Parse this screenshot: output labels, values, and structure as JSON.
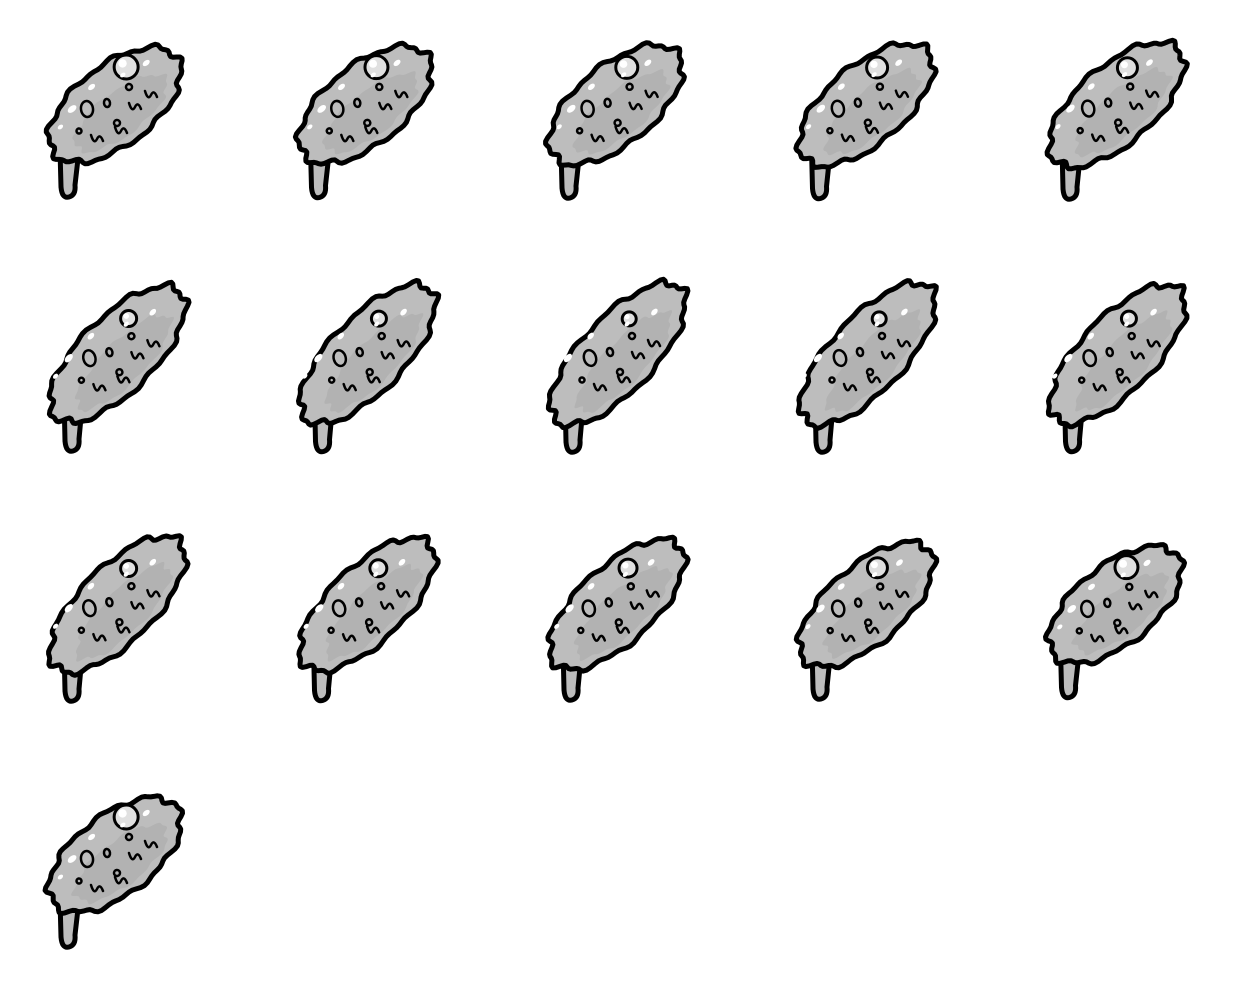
{
  "sprite_sheet": {
    "columns": 5,
    "rows": 4,
    "frame_count": 16,
    "colors": {
      "background": "#ffffff",
      "body_fill": "#bdbdbd",
      "shadow_fill": "#9e9e9e",
      "highlight": "#ffffff",
      "outline": "#000000"
    },
    "frames": [
      {
        "index": 0,
        "icon": "slime-blob-icon",
        "stretch": 0.0
      },
      {
        "index": 1,
        "icon": "slime-blob-icon",
        "stretch": 0.05
      },
      {
        "index": 2,
        "icon": "slime-blob-icon",
        "stretch": 0.1
      },
      {
        "index": 3,
        "icon": "slime-blob-icon",
        "stretch": 0.15
      },
      {
        "index": 4,
        "icon": "slime-blob-icon",
        "stretch": 0.2
      },
      {
        "index": 5,
        "icon": "slime-blob-icon",
        "stretch": 0.4
      },
      {
        "index": 6,
        "icon": "slime-blob-icon",
        "stretch": 0.45
      },
      {
        "index": 7,
        "icon": "slime-blob-icon",
        "stretch": 0.5
      },
      {
        "index": 8,
        "icon": "slime-blob-icon",
        "stretch": 0.5
      },
      {
        "index": 9,
        "icon": "slime-blob-icon",
        "stretch": 0.45
      },
      {
        "index": 10,
        "icon": "slime-blob-icon",
        "stretch": 0.4
      },
      {
        "index": 11,
        "icon": "slime-blob-icon",
        "stretch": 0.35
      },
      {
        "index": 12,
        "icon": "slime-blob-icon",
        "stretch": 0.3
      },
      {
        "index": 13,
        "icon": "slime-blob-icon",
        "stretch": 0.2
      },
      {
        "index": 14,
        "icon": "slime-blob-icon",
        "stretch": 0.05
      },
      {
        "index": 15,
        "icon": "slime-blob-icon",
        "stretch": 0.0
      }
    ]
  }
}
